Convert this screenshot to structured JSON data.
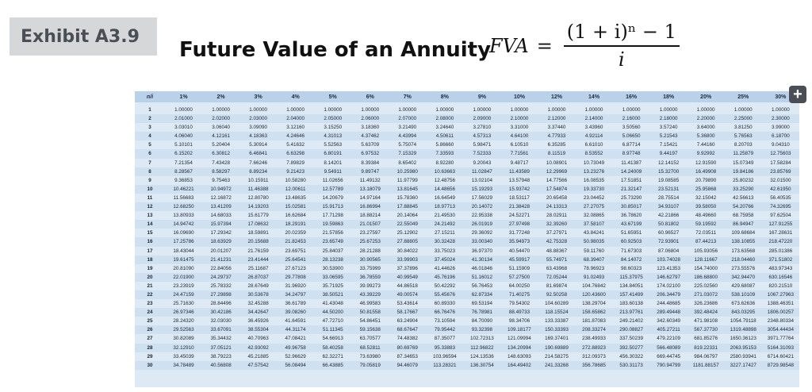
{
  "exhibit_label": "Exhibit A3.9",
  "title": "Future Value of an Annuity",
  "formula": {
    "lhs": "FVA",
    "equals": "=",
    "numerator": "(1 + i)ⁿ − 1",
    "denominator": "i"
  },
  "add_button": {
    "icon": "plus-icon",
    "label": "+"
  },
  "table": {
    "headers": [
      "n/i",
      "1%",
      "2%",
      "3%",
      "4%",
      "5%",
      "6%",
      "7%",
      "8%",
      "9%",
      "10%",
      "12%",
      "14%",
      "16%",
      "18%",
      "20%",
      "25%",
      "30%"
    ],
    "rows": [
      [
        "1",
        "1.00000",
        "1.00000",
        "1.00000",
        "1.00000",
        "1.00000",
        "1.00000",
        "1.00000",
        "1.00000",
        "1.00000",
        "1.00000",
        "1.00000",
        "1.00000",
        "1.00000",
        "1.00000",
        "1.00000",
        "1.00000",
        "1.00000"
      ],
      [
        "2",
        "2.01000",
        "2.02000",
        "2.03000",
        "2.04000",
        "2.05000",
        "2.06000",
        "2.07000",
        "2.08000",
        "2.09000",
        "2.10000",
        "2.12000",
        "2.14000",
        "2.16000",
        "2.18000",
        "2.20000",
        "2.25000",
        "2.30000"
      ],
      [
        "3",
        "3.03010",
        "3.06040",
        "3.09090",
        "3.12160",
        "3.15250",
        "3.18360",
        "3.21490",
        "3.24640",
        "3.27810",
        "3.31000",
        "3.37440",
        "3.43960",
        "3.50560",
        "3.57240",
        "3.64000",
        "3.81250",
        "3.99000"
      ],
      [
        "4",
        "4.06040",
        "4.12161",
        "4.18363",
        "4.24646",
        "4.31013",
        "4.37462",
        "4.43994",
        "4.50611",
        "4.57313",
        "4.64100",
        "4.77933",
        "4.92114",
        "5.06650",
        "5.21543",
        "5.36800",
        "5.76563",
        "6.18700"
      ],
      [
        "5",
        "5.10101",
        "5.20404",
        "5.30914",
        "5.41632",
        "5.52563",
        "5.63709",
        "5.75074",
        "5.86660",
        "5.98471",
        "6.10510",
        "6.35285",
        "6.61010",
        "6.87714",
        "7.15421",
        "7.44160",
        "8.20703",
        "9.04310"
      ],
      [
        "6",
        "6.15202",
        "6.30812",
        "6.46841",
        "6.63298",
        "6.80191",
        "6.97532",
        "7.15329",
        "7.33593",
        "7.52333",
        "7.71561",
        "8.11519",
        "8.53552",
        "8.97748",
        "9.44197",
        "9.92992",
        "11.25879",
        "12.75603"
      ],
      [
        "7",
        "7.21354",
        "7.43428",
        "7.66246",
        "7.89829",
        "8.14201",
        "8.39384",
        "8.65402",
        "8.92280",
        "9.20043",
        "9.48717",
        "10.08901",
        "10.73049",
        "11.41387",
        "12.14152",
        "12.91590",
        "15.07349",
        "17.58284"
      ],
      [
        "8",
        "8.28567",
        "8.58297",
        "8.89234",
        "9.21423",
        "9.54911",
        "9.89747",
        "10.25980",
        "10.63663",
        "11.02847",
        "11.43589",
        "12.29969",
        "13.23276",
        "14.24009",
        "15.32700",
        "16.49908",
        "19.84186",
        "23.85769"
      ],
      [
        "9",
        "9.36853",
        "9.75463",
        "10.15911",
        "10.58280",
        "11.02656",
        "11.49132",
        "11.97799",
        "12.48756",
        "13.02104",
        "13.57948",
        "14.77566",
        "16.08535",
        "17.51851",
        "19.08585",
        "20.79890",
        "25.80232",
        "32.01500"
      ],
      [
        "10",
        "10.46221",
        "10.94972",
        "11.46388",
        "12.00611",
        "12.57789",
        "13.18079",
        "13.81645",
        "14.48656",
        "15.19293",
        "15.93742",
        "17.54874",
        "19.33730",
        "21.32147",
        "23.52131",
        "25.95868",
        "33.25290",
        "42.61950"
      ],
      [
        "11",
        "11.56683",
        "12.16872",
        "12.80780",
        "13.48635",
        "14.20679",
        "14.97164",
        "15.78360",
        "16.64549",
        "17.56029",
        "18.53117",
        "20.65458",
        "23.04452",
        "25.73290",
        "28.75514",
        "32.15042",
        "42.56613",
        "56.40535"
      ],
      [
        "12",
        "12.68250",
        "13.41209",
        "14.19203",
        "15.02581",
        "15.91713",
        "16.86994",
        "17.88845",
        "18.97713",
        "20.14072",
        "21.38428",
        "24.13313",
        "27.27075",
        "30.85017",
        "34.93107",
        "39.58050",
        "54.20766",
        "74.32695"
      ],
      [
        "13",
        "13.80933",
        "14.68033",
        "15.61779",
        "16.62684",
        "17.71298",
        "18.88214",
        "20.14064",
        "21.49530",
        "22.95338",
        "24.52271",
        "28.02911",
        "32.08865",
        "36.78620",
        "42.21866",
        "48.49660",
        "68.75958",
        "97.62504"
      ],
      [
        "14",
        "14.94742",
        "15.97394",
        "17.08632",
        "18.29191",
        "19.59863",
        "21.01507",
        "22.55049",
        "24.21492",
        "26.01919",
        "27.97498",
        "32.39260",
        "37.58107",
        "43.67199",
        "50.81802",
        "59.19592",
        "86.94947",
        "127.91255"
      ],
      [
        "15",
        "16.09690",
        "17.29342",
        "18.59891",
        "20.02359",
        "21.57856",
        "23.27597",
        "25.12902",
        "27.15211",
        "29.36092",
        "31.77248",
        "37.27971",
        "43.84241",
        "51.65951",
        "60.96527",
        "72.03511",
        "109.68684",
        "167.28631"
      ],
      [
        "16",
        "17.25786",
        "18.63929",
        "20.15688",
        "21.82453",
        "23.65749",
        "25.67253",
        "27.88805",
        "30.32428",
        "33.00340",
        "35.94973",
        "42.75328",
        "50.98035",
        "60.92503",
        "72.93901",
        "87.44213",
        "138.10855",
        "218.47220"
      ],
      [
        "17",
        "18.43044",
        "20.01207",
        "21.76159",
        "23.69751",
        "25.84037",
        "28.21288",
        "30.84022",
        "33.75023",
        "36.97370",
        "40.54470",
        "48.88367",
        "59.11760",
        "71.67303",
        "87.06804",
        "105.93056",
        "173.63568",
        "285.01386"
      ],
      [
        "18",
        "19.61475",
        "21.41231",
        "23.41444",
        "25.64541",
        "28.13238",
        "30.90565",
        "33.99903",
        "37.45024",
        "41.30134",
        "45.59917",
        "55.74971",
        "68.39407",
        "84.14072",
        "103.74028",
        "128.11667",
        "218.04460",
        "371.51802"
      ],
      [
        "19",
        "20.81090",
        "22.84056",
        "25.11687",
        "27.67123",
        "30.53900",
        "33.75999",
        "37.37896",
        "41.44626",
        "46.01846",
        "51.15909",
        "63.43968",
        "78.96923",
        "98.60323",
        "123.41353",
        "154.74000",
        "273.55576",
        "483.97343"
      ],
      [
        "20",
        "22.01900",
        "24.29737",
        "26.87037",
        "29.77808",
        "33.06595",
        "36.78559",
        "40.99549",
        "45.76196",
        "51.16012",
        "57.27500",
        "72.05244",
        "91.02493",
        "115.37975",
        "146.62797",
        "186.68800",
        "342.94470",
        "630.16546"
      ],
      [
        "21",
        "23.23919",
        "25.78332",
        "28.67649",
        "31.96920",
        "35.71925",
        "39.99273",
        "44.86518",
        "50.42292",
        "56.76453",
        "64.00250",
        "81.69874",
        "104.76842",
        "134.84051",
        "174.02100",
        "225.02560",
        "429.68087",
        "820.21510"
      ],
      [
        "22",
        "24.47159",
        "27.29898",
        "30.53678",
        "34.24797",
        "38.50521",
        "43.39229",
        "49.00574",
        "55.45676",
        "62.87334",
        "71.40275",
        "92.50258",
        "120.43600",
        "157.41499",
        "206.34479",
        "271.03072",
        "538.10109",
        "1067.27963"
      ],
      [
        "23",
        "25.71630",
        "28.84496",
        "32.45288",
        "36.61789",
        "41.43048",
        "46.99583",
        "53.43614",
        "60.89330",
        "69.53194",
        "79.54302",
        "104.60289",
        "138.29704",
        "183.60138",
        "244.48685",
        "326.23686",
        "673.62636",
        "1388.46351"
      ],
      [
        "24",
        "26.97346",
        "30.42186",
        "34.42647",
        "39.08260",
        "44.50200",
        "50.81558",
        "58.17667",
        "66.76476",
        "76.78981",
        "88.49733",
        "118.15524",
        "158.65862",
        "213.97761",
        "289.49448",
        "392.48424",
        "843.03295",
        "1806.00257"
      ],
      [
        "25",
        "28.24320",
        "32.03030",
        "36.45926",
        "41.64591",
        "47.72710",
        "54.86451",
        "63.24904",
        "73.10594",
        "84.70090",
        "98.34706",
        "133.33387",
        "181.87083",
        "249.21402",
        "342.60349",
        "471.98108",
        "1054.79118",
        "2348.80334"
      ],
      [
        "26",
        "29.52563",
        "33.67091",
        "38.55304",
        "44.31174",
        "51.11345",
        "59.15638",
        "68.67647",
        "79.95442",
        "93.32398",
        "109.18177",
        "150.33393",
        "208.33274",
        "290.08827",
        "405.27211",
        "567.37730",
        "1319.48898",
        "3054.44434"
      ],
      [
        "27",
        "30.82089",
        "35.34432",
        "40.70963",
        "47.08421",
        "54.66913",
        "63.70577",
        "74.48382",
        "87.35077",
        "102.72313",
        "121.09994",
        "169.37401",
        "238.49933",
        "337.50239",
        "479.22109",
        "681.85276",
        "1650.36123",
        "3971.77764"
      ],
      [
        "28",
        "32.12910",
        "37.05121",
        "42.93092",
        "49.96758",
        "58.40258",
        "68.52811",
        "80.69769",
        "95.33883",
        "112.96822",
        "134.20994",
        "190.69889",
        "272.88923",
        "392.50277",
        "566.48089",
        "819.22331",
        "2063.95153",
        "5164.31093"
      ],
      [
        "29",
        "33.45039",
        "38.79223",
        "45.21885",
        "52.96629",
        "62.32271",
        "73.63980",
        "87.34653",
        "103.96594",
        "124.13536",
        "148.63093",
        "214.58275",
        "312.09373",
        "456.30322",
        "669.44745",
        "984.06797",
        "2580.93941",
        "6714.60421"
      ],
      [
        "30",
        "34.78489",
        "40.56808",
        "47.57542",
        "56.08494",
        "66.43885",
        "79.05819",
        "94.46079",
        "113.28321",
        "136.30754",
        "164.49402",
        "241.33268",
        "356.78685",
        "530.31173",
        "790.94799",
        "1181.88157",
        "3227.17427",
        "8729.98548"
      ]
    ]
  }
}
